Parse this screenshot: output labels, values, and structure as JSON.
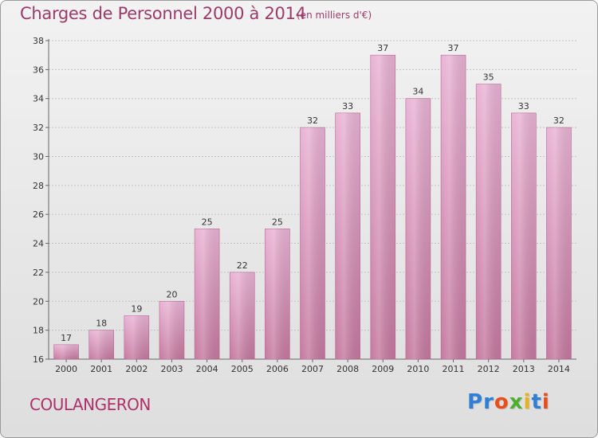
{
  "header": {
    "title": "Charges de Personnel 2000 à 2014",
    "subtitle": "(en milliers d'€)"
  },
  "footer": {
    "commune": "COULANGERON",
    "logo_text": "Proxiti",
    "logo_colors": [
      "#2f7fd6",
      "#2f7fd6",
      "#e94e1b",
      "#4caf2f",
      "#e9b21b",
      "#2f7fd6",
      "#e94e1b"
    ]
  },
  "colors": {
    "bar_top": "#e9b3d5",
    "bar_bottom": "#c5799f",
    "text": "#333333",
    "accent": "#9b3b6a"
  },
  "chart_data": {
    "type": "bar",
    "title": "Charges de Personnel 2000 à 2014",
    "subtitle": "(en milliers d'€)",
    "categories": [
      "2000",
      "2001",
      "2002",
      "2003",
      "2004",
      "2005",
      "2006",
      "2007",
      "2008",
      "2009",
      "2010",
      "2011",
      "2012",
      "2013",
      "2014"
    ],
    "values": [
      17,
      18,
      19,
      20,
      25,
      22,
      25,
      32,
      33,
      37,
      34,
      37,
      35,
      33,
      32
    ],
    "ylim": [
      16,
      38
    ],
    "yticks": [
      16,
      18,
      20,
      22,
      24,
      26,
      28,
      30,
      32,
      34,
      36,
      38
    ],
    "grid": true,
    "xlabel": "",
    "ylabel": ""
  }
}
